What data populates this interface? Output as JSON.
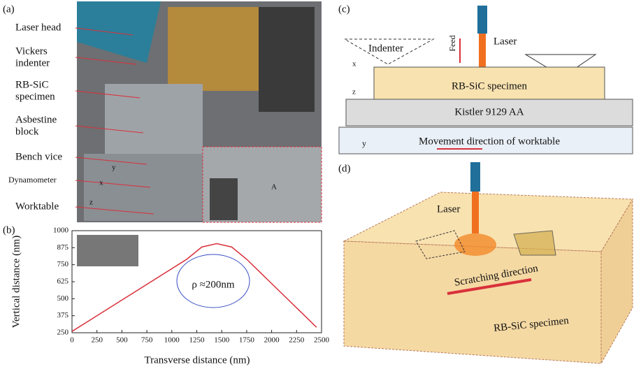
{
  "panel_a": {
    "label": "(a)",
    "callouts": [
      [
        "Laser head"
      ],
      [
        "Vickers",
        "indenter"
      ],
      [
        "RB-SiC",
        "specimen"
      ],
      [
        "Asbestine",
        "block"
      ],
      [
        "Bench vice"
      ],
      [
        "Dynamometer"
      ],
      [
        "Worktable"
      ]
    ],
    "axes": [
      "x",
      "y",
      "z",
      "A"
    ]
  },
  "chart_data": {
    "type": "line",
    "label": "(b)",
    "x_label": "Transverse distance (nm)",
    "y_label": "Vertical distance (nm)",
    "annotation": "ρ ≈200nm",
    "x": [
      0,
      1150,
      1300,
      1450,
      1600,
      1750,
      2450
    ],
    "series": [
      {
        "color": "#d9303b",
        "values": [
          260,
          790,
          880,
          905,
          880,
          790,
          290
        ]
      }
    ],
    "xlim": [
      0,
      2500
    ],
    "xticks": [
      0,
      250,
      500,
      750,
      1000,
      1250,
      1500,
      1750,
      2000,
      2250,
      2500
    ],
    "ylim": [
      250,
      1000
    ],
    "yticks": [
      250,
      375,
      500,
      625,
      750,
      875,
      1000
    ]
  },
  "panel_c": {
    "label": "(c)",
    "indenter": "Indenter",
    "feed": "Feed",
    "laser": "Laser",
    "specimen": "RB-SiC specimen",
    "dynamometer": "Kistler 9129 AA",
    "movement": "Movement direction of worktable",
    "axes": [
      "x",
      "z",
      "y"
    ]
  },
  "panel_d": {
    "label": "(d)",
    "laser": "Laser",
    "direction": "Scratching direction",
    "specimen": "RB-SiC specimen"
  }
}
